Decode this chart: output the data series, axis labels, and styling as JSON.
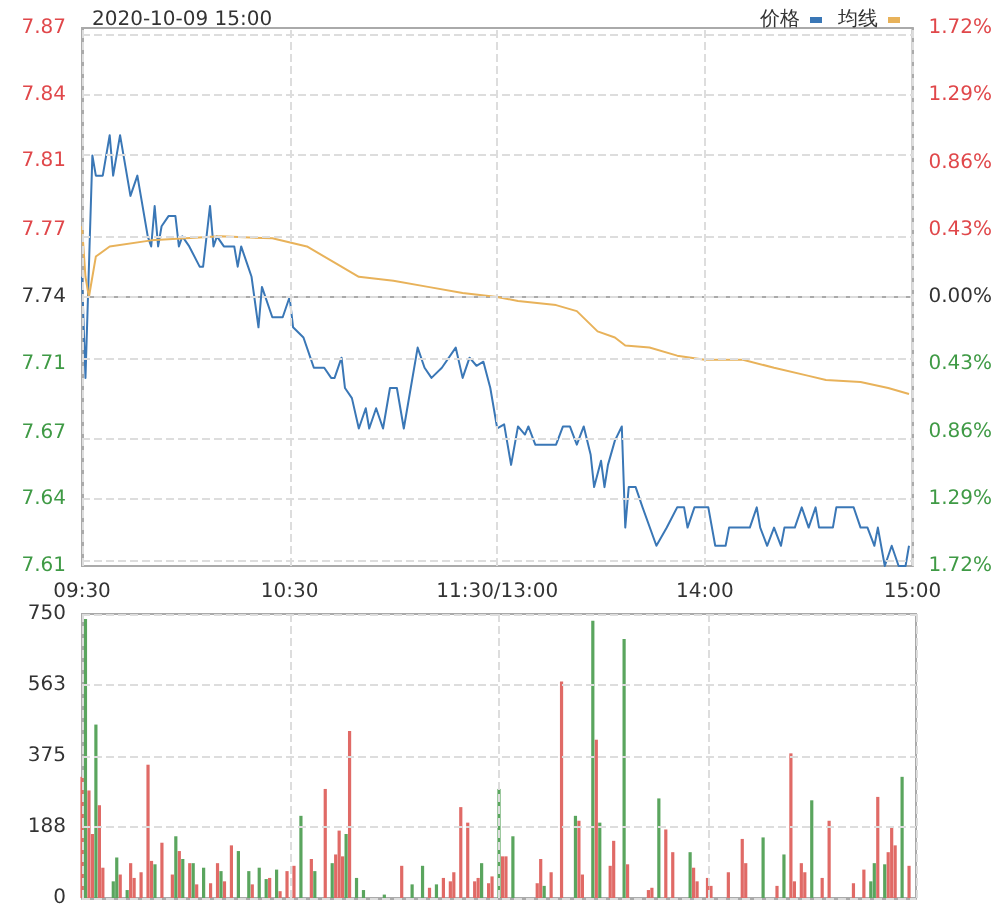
{
  "chart_data": [
    {
      "type": "line",
      "title": "2020-10-09 15:00",
      "categories": [
        "09:30",
        null,
        null,
        null,
        null,
        null,
        null,
        null,
        null,
        null,
        null,
        null,
        null,
        null,
        null,
        null,
        null,
        null,
        null,
        null,
        null,
        null,
        null,
        null,
        null,
        null,
        null,
        null,
        null,
        null,
        null,
        null,
        null,
        null,
        null,
        null,
        null,
        null,
        null,
        null,
        null,
        null,
        null,
        null,
        null,
        null,
        null,
        null,
        null,
        null,
        null,
        null,
        null,
        null,
        null,
        null,
        null,
        null,
        null,
        null,
        "10:30",
        null,
        null,
        null,
        null,
        null,
        null,
        null,
        null,
        null,
        null,
        null,
        null,
        null,
        null,
        null,
        null,
        null,
        null,
        null,
        null,
        null,
        null,
        null,
        null,
        null,
        null,
        null,
        null,
        null,
        null,
        null,
        null,
        null,
        null,
        null,
        null,
        null,
        null,
        null,
        null,
        null,
        null,
        null,
        null,
        null,
        null,
        null,
        null,
        null,
        null,
        null,
        null,
        null,
        null,
        null,
        null,
        null,
        null,
        null,
        "11:30/13:00",
        null,
        null,
        null,
        null,
        null,
        null,
        null,
        null,
        null,
        null,
        null,
        null,
        null,
        null,
        null,
        null,
        null,
        null,
        null,
        null,
        null,
        null,
        null,
        null,
        null,
        null,
        null,
        null,
        null,
        null,
        null,
        null,
        null,
        null,
        null,
        null,
        null,
        null,
        null,
        null,
        null,
        null,
        null,
        null,
        null,
        null,
        null,
        null,
        null,
        null,
        null,
        null,
        null,
        null,
        null,
        null,
        null,
        null,
        null,
        "14:00",
        null,
        null,
        null,
        null,
        null,
        null,
        null,
        null,
        null,
        null,
        null,
        null,
        null,
        null,
        null,
        null,
        null,
        null,
        null,
        null,
        null,
        null,
        null,
        null,
        null,
        null,
        null,
        null,
        null,
        null,
        null,
        null,
        null,
        null,
        null,
        null,
        null,
        null,
        null,
        null,
        null,
        null,
        null,
        null,
        null,
        null,
        null,
        null,
        null,
        null,
        null,
        null,
        null,
        null,
        null,
        null,
        null,
        null,
        null,
        "15:00"
      ],
      "ylim": [
        7.607,
        7.873
      ],
      "yticks": [
        {
          "value": 7.607,
          "label": "7.61"
        },
        {
          "value": 7.64,
          "label": "7.64"
        },
        {
          "value": 7.673,
          "label": "7.67"
        },
        {
          "value": 7.707,
          "label": "7.71"
        },
        {
          "value": 7.74,
          "label": "7.74"
        },
        {
          "value": 7.773,
          "label": "7.77"
        },
        {
          "value": 7.807,
          "label": "7.81"
        },
        {
          "value": 7.84,
          "label": "7.84"
        },
        {
          "value": 7.873,
          "label": "7.87"
        }
      ],
      "y2lim": [
        -1.72,
        1.72
      ],
      "y2ticks": [
        {
          "value": -1.72,
          "label": "1.72%"
        },
        {
          "value": -1.29,
          "label": "1.29%"
        },
        {
          "value": -0.86,
          "label": "0.86%"
        },
        {
          "value": -0.43,
          "label": "0.43%"
        },
        {
          "value": 0,
          "label": "0.00%"
        },
        {
          "value": 0.43,
          "label": "0.43%"
        },
        {
          "value": 0.86,
          "label": "0.86%"
        },
        {
          "value": 1.29,
          "label": "1.29%"
        },
        {
          "value": 1.72,
          "label": "1.72%"
        }
      ],
      "grid": true,
      "legend": "top right",
      "marker": "none",
      "line_style": "solid",
      "series": [
        {
          "name": "价格",
          "color": "#3a77b6",
          "values": [
            7.75,
            7.7,
            null,
            7.81,
            7.8,
            null,
            7.8,
            null,
            7.82,
            7.8,
            null,
            7.82,
            null,
            7.8,
            7.79,
            null,
            7.8,
            7.79,
            null,
            7.77,
            7.765,
            7.785,
            7.765,
            7.775,
            null,
            7.78,
            null,
            7.78,
            7.765,
            7.77,
            null,
            7.765,
            null,
            null,
            7.755,
            7.755,
            null,
            7.785,
            7.765,
            7.77,
            null,
            7.765,
            null,
            null,
            7.765,
            7.755,
            7.765,
            null,
            7.755,
            7.75,
            null,
            7.725,
            7.745,
            null,
            null,
            7.73,
            null,
            null,
            7.73,
            null,
            7.74,
            7.725,
            null,
            null,
            7.72,
            null,
            7.71,
            7.705,
            null,
            null,
            7.705,
            null,
            7.7,
            7.7,
            null,
            7.71,
            7.695,
            null,
            7.69,
            null,
            7.675,
            null,
            7.685,
            7.675,
            null,
            7.685,
            null,
            7.675,
            null,
            7.695,
            null,
            7.695,
            null,
            7.675,
            null,
            7.695,
            null,
            7.715,
            null,
            7.705,
            null,
            7.7,
            null,
            null,
            7.705,
            null,
            null,
            null,
            7.715,
            null,
            7.7,
            null,
            7.71,
            null,
            7.706,
            null,
            7.708,
            null,
            7.695,
            null,
            7.675,
            null,
            7.677,
            null,
            7.657,
            null,
            7.676,
            null,
            7.672,
            7.676,
            null,
            7.667,
            null,
            null,
            null,
            null,
            null,
            7.667,
            null,
            7.676,
            null,
            7.676,
            null,
            7.667,
            null,
            7.676,
            null,
            7.662,
            7.646,
            null,
            7.659,
            7.646,
            7.657,
            null,
            7.669,
            null,
            7.676,
            7.626,
            7.646,
            null,
            7.646,
            null,
            7.636,
            null,
            null,
            null,
            7.617,
            null,
            null,
            7.626,
            null,
            null,
            7.636,
            null,
            7.636,
            7.626,
            null,
            7.636,
            null,
            null,
            null,
            7.636,
            null,
            7.617,
            null,
            null,
            7.617,
            7.626,
            null,
            null,
            null,
            null,
            null,
            7.626,
            null,
            7.636,
            7.626,
            null,
            7.617,
            null,
            7.626,
            null,
            7.617,
            7.626,
            null,
            null,
            7.626,
            null,
            7.636,
            null,
            7.626,
            null,
            7.636,
            7.626,
            null,
            null,
            null,
            7.626,
            7.636,
            null,
            null,
            null,
            null,
            7.636,
            null,
            7.626,
            null,
            7.626,
            null,
            7.617,
            7.626,
            null,
            7.607,
            null,
            7.617,
            null,
            7.607,
            null,
            7.607,
            7.617,
            null
          ]
        },
        {
          "name": "均线",
          "color": "#e8b25a",
          "values": [
            7.775,
            7.75,
            7.74,
            null,
            7.76,
            null,
            null,
            null,
            7.765,
            null,
            null,
            null,
            null,
            null,
            null,
            null,
            null,
            null,
            null,
            null,
            7.768,
            null,
            null,
            null,
            null,
            null,
            null,
            null,
            null,
            null,
            null,
            null,
            null,
            null,
            null,
            null,
            null,
            null,
            null,
            null,
            7.77,
            null,
            null,
            null,
            null,
            null,
            null,
            null,
            null,
            null,
            null,
            null,
            null,
            null,
            null,
            7.769,
            null,
            null,
            null,
            null,
            null,
            null,
            null,
            null,
            null,
            7.765,
            null,
            null,
            null,
            null,
            null,
            null,
            null,
            7.757,
            null,
            null,
            null,
            null,
            null,
            null,
            7.75,
            null,
            null,
            null,
            null,
            null,
            null,
            null,
            null,
            null,
            7.748,
            null,
            null,
            null,
            null,
            null,
            null,
            null,
            null,
            null,
            7.745,
            null,
            null,
            null,
            null,
            null,
            null,
            null,
            null,
            null,
            7.742,
            null,
            null,
            null,
            null,
            null,
            null,
            null,
            null,
            null,
            7.74,
            null,
            null,
            null,
            null,
            null,
            7.738,
            null,
            null,
            null,
            null,
            null,
            null,
            null,
            null,
            null,
            null,
            7.736,
            null,
            null,
            null,
            null,
            null,
            7.733,
            null,
            null,
            null,
            null,
            null,
            7.723,
            null,
            null,
            null,
            null,
            7.72,
            null,
            null,
            7.716,
            null,
            null,
            null,
            null,
            null,
            null,
            7.715,
            null,
            null,
            null,
            null,
            null,
            null,
            null,
            7.711,
            null,
            null,
            null,
            null,
            null,
            null,
            null,
            7.709,
            null,
            null,
            null,
            null,
            null,
            null,
            null,
            null,
            null,
            null,
            7.709,
            null,
            null,
            null,
            null,
            null,
            null,
            null,
            null,
            7.705,
            null,
            null,
            null,
            null,
            null,
            null,
            null,
            null,
            null,
            7.701,
            null,
            null,
            null,
            null,
            7.699,
            null,
            null,
            null,
            null,
            null,
            null,
            null,
            null,
            null,
            7.698,
            null,
            null,
            null,
            null,
            null,
            null,
            null,
            7.695,
            null,
            null,
            null,
            null,
            null,
            7.692,
            null
          ]
        }
      ]
    },
    {
      "type": "bar",
      "tick_labels": "y",
      "grid": true,
      "categories": [
        null,
        null,
        null,
        null,
        null,
        null,
        null,
        null,
        null,
        null,
        null,
        null,
        null,
        null,
        null,
        null,
        null,
        null,
        null,
        null,
        null,
        null,
        null,
        null,
        null,
        null,
        null,
        null,
        null,
        null,
        null,
        null,
        null,
        null,
        null,
        null,
        null,
        null,
        null,
        null,
        null,
        null,
        null,
        null,
        null,
        null,
        null,
        null,
        null,
        null,
        null,
        null,
        null,
        null,
        null,
        null,
        null,
        null,
        null,
        null,
        null,
        null,
        null,
        null,
        null,
        null,
        null,
        null,
        null,
        null,
        null,
        null,
        null,
        null,
        null,
        null,
        null,
        null,
        null,
        null,
        null,
        null,
        null,
        null,
        null,
        null,
        null,
        null,
        null,
        null,
        null,
        null,
        null,
        null,
        null,
        null,
        null,
        null,
        null,
        null,
        null,
        null,
        null,
        null,
        null,
        null,
        null,
        null,
        null,
        null,
        null,
        null,
        null,
        null,
        null,
        null,
        null,
        null,
        null,
        null,
        null,
        null,
        null,
        null,
        null,
        null,
        null,
        null,
        null,
        null,
        null,
        null,
        null,
        null,
        null,
        null,
        null,
        null,
        null,
        null,
        null,
        null,
        null,
        null,
        null,
        null,
        null,
        null,
        null,
        null,
        null,
        null,
        null,
        null,
        null,
        null,
        null,
        null,
        null,
        null,
        null,
        null,
        null,
        null,
        null,
        null,
        null,
        null,
        null,
        null,
        null,
        null,
        null,
        null,
        null,
        null,
        null,
        null,
        null,
        null,
        null,
        null,
        null,
        null,
        null,
        null,
        null,
        null,
        null,
        null,
        null,
        null,
        null,
        null,
        null,
        null,
        null,
        null,
        null,
        null,
        null,
        null,
        null,
        null,
        null,
        null,
        null,
        null,
        null,
        null,
        null,
        null,
        null,
        null,
        null,
        null,
        null,
        null,
        null,
        null,
        null,
        null,
        null,
        null,
        null,
        null,
        null,
        null,
        null,
        null,
        null,
        null,
        null,
        null,
        null,
        null,
        null,
        null,
        null,
        null,
        null
      ],
      "stacked": true,
      "ylim": [
        0,
        750
      ],
      "yticks": [
        0,
        188,
        375,
        563,
        750
      ],
      "series": [
        {
          "color": "#e06a66",
          "values": [
            320,
            null,
            284,
            169,
            null,
            245,
            80,
            null,
            null,
            null,
            null,
            62,
            null,
            null,
            92,
            53,
            null,
            68,
            null,
            352,
            98,
            null,
            null,
            146,
            null,
            null,
            62,
            null,
            124,
            null,
            null,
            92,
            null,
            36,
            null,
            null,
            null,
            39,
            null,
            92,
            null,
            44,
            null,
            139,
            null,
            null,
            null,
            null,
            null,
            36,
            null,
            null,
            null,
            null,
            53,
            null,
            null,
            18,
            null,
            71,
            null,
            85,
            null,
            null,
            null,
            null,
            103,
            null,
            null,
            null,
            288,
            null,
            null,
            115,
            178,
            110,
            null,
            441,
            null,
            null,
            null,
            null,
            null,
            null,
            null,
            null,
            null,
            null,
            null,
            null,
            null,
            null,
            85,
            null,
            null,
            null,
            null,
            null,
            null,
            null,
            27,
            null,
            null,
            null,
            53,
            null,
            44,
            68,
            null,
            240,
            null,
            199,
            null,
            44,
            53,
            null,
            null,
            39,
            57,
            null,
            null,
            110,
            110,
            null,
            null,
            null,
            null,
            null,
            null,
            null,
            null,
            39,
            103,
            null,
            null,
            68,
            null,
            null,
            572,
            null,
            null,
            null,
            null,
            204,
            62,
            null,
            null,
            null,
            418,
            null,
            null,
            null,
            85,
            151,
            null,
            null,
            null,
            89,
            null,
            null,
            null,
            null,
            null,
            21,
            27,
            null,
            null,
            null,
            181,
            null,
            121,
            null,
            null,
            null,
            null,
            null,
            80,
            44,
            null,
            null,
            53,
            32,
            null,
            null,
            null,
            null,
            68,
            null,
            null,
            null,
            156,
            92,
            null,
            null,
            null,
            null,
            null,
            null,
            null,
            null,
            32,
            null,
            null,
            null,
            382,
            44,
            null,
            92,
            68,
            null,
            null,
            null,
            null,
            53,
            null,
            204,
            null,
            null,
            null,
            null,
            null,
            null,
            39,
            null,
            null,
            75,
            null,
            null,
            null,
            267,
            null,
            null,
            121,
            187,
            139,
            null,
            null,
            null,
            85,
            null,
            null
          ]
        },
        {
          "color": "#5aa55e",
          "values": [
            null,
            737,
            null,
            null,
            458,
            null,
            null,
            null,
            null,
            44,
            107,
            null,
            null,
            21,
            null,
            null,
            null,
            null,
            null,
            null,
            null,
            89,
            null,
            null,
            null,
            null,
            null,
            163,
            null,
            103,
            null,
            null,
            92,
            null,
            null,
            80,
            null,
            null,
            null,
            null,
            71,
            null,
            null,
            null,
            null,
            124,
            null,
            null,
            71,
            null,
            null,
            80,
            null,
            50,
            null,
            null,
            75,
            null,
            null,
            null,
            null,
            null,
            null,
            217,
            null,
            null,
            null,
            71,
            null,
            null,
            null,
            null,
            92,
            null,
            null,
            null,
            169,
            null,
            null,
            53,
            null,
            21,
            null,
            null,
            null,
            null,
            null,
            9,
            null,
            null,
            null,
            null,
            null,
            null,
            null,
            36,
            null,
            null,
            85,
            null,
            null,
            null,
            36,
            null,
            null,
            null,
            null,
            null,
            null,
            null,
            null,
            null,
            null,
            null,
            null,
            92,
            null,
            null,
            null,
            null,
            288,
            null,
            null,
            null,
            163,
            null,
            null,
            null,
            null,
            null,
            null,
            null,
            null,
            32,
            null,
            null,
            null,
            null,
            null,
            null,
            null,
            null,
            217,
            null,
            null,
            null,
            null,
            732,
            null,
            199,
            null,
            null,
            null,
            null,
            null,
            null,
            684,
            null,
            null,
            null,
            null,
            null,
            null,
            null,
            null,
            null,
            263,
            null,
            null,
            null,
            null,
            null,
            null,
            null,
            null,
            121,
            null,
            null,
            null,
            null,
            null,
            null,
            null,
            null,
            null,
            null,
            null,
            null,
            null,
            null,
            null,
            null,
            null,
            null,
            null,
            null,
            160,
            null,
            null,
            null,
            null,
            null,
            115,
            null,
            null,
            null,
            null,
            null,
            null,
            null,
            258,
            null,
            null,
            null,
            null,
            null,
            null,
            null,
            null,
            null,
            null,
            null,
            null,
            null,
            null,
            null,
            null,
            44,
            92,
            null,
            null,
            89,
            null,
            null,
            null,
            null,
            320,
            null,
            null,
            null,
            null
          ]
        }
      ]
    }
  ]
}
